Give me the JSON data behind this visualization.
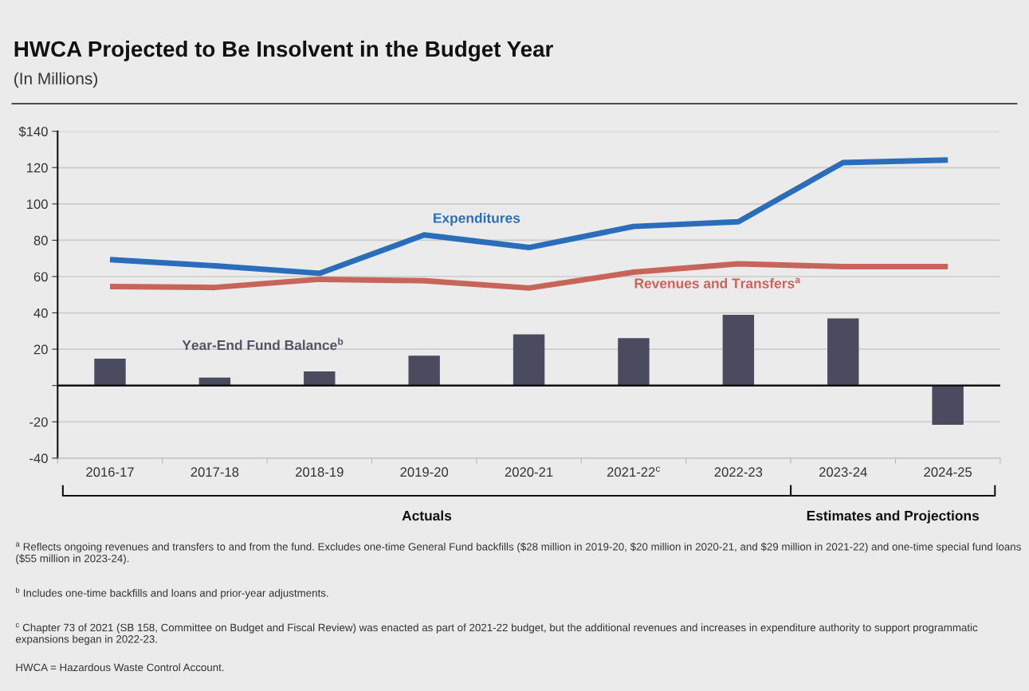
{
  "chart_data": {
    "type": "line",
    "title": "HWCA Projected to Be Insolvent in the Budget Year",
    "subtitle": "(In Millions)",
    "categories": [
      "2016-17",
      "2017-18",
      "2018-19",
      "2019-20",
      "2020-21",
      "2021-22$^{c}$",
      "2022-23",
      "2023-24",
      "2024-25"
    ],
    "series": [
      {
        "name": "Year-End Fund Balance$^{b}$",
        "type": "bar",
        "color": "#4b4b60",
        "values": [
          14.8,
          4.4,
          7.8,
          16.4,
          28.2,
          26.1,
          38.9,
          36.9,
          -21.6
        ]
      },
      {
        "name": "Expenditures",
        "color": "#2a6ebb",
        "values": [
          69.3,
          65.9,
          61.8,
          82.9,
          76.0,
          87.6,
          90.2,
          122.8,
          124.2
        ]
      },
      {
        "name": "Revenues and Transfers$^{a}$",
        "color": "#c8655a",
        "values": [
          54.5,
          54.0,
          58.5,
          57.7,
          53.7,
          62.4,
          67.0,
          65.5,
          65.5
        ]
      }
    ],
    "ylim": [
      -40,
      140
    ],
    "yticks": [
      {
        "value": 140,
        "label": "$140"
      },
      120,
      100,
      80,
      60,
      40,
      20,
      {
        "value": 0,
        "label": null
      },
      -20,
      -40
    ],
    "ref_lines": [
      {
        "axis": "y",
        "value": 0,
        "color": "#111111"
      }
    ],
    "grid": "y",
    "legend": false,
    "marker": "none",
    "line_style": "solid",
    "annotations": [
      "Actuals",
      "Estimates and Projections",
      "$^{a}$ Reflects ongoing revenues and transfers to and from the fund. Excludes one-time General Fund backfills ($28 million in 2019-20, $20 million in 2020-21, and $29 million in 2021-22) and one-time special fund loans ($55 million in 2023-24).",
      "$^{b}$ Includes one-time backfills and loans and prior-year adjustments.",
      "$^{c}$ Chapter 73 of 2021 (SB 158, Committee on Budget and Fiscal Review) was enacted as part of 2021-22 budget, but the additional revenues and increases in expenditure authority to support programmatic expansions began in 2022-23.",
      "HWCA = Hazardous Waste Control Account."
    ]
  }
}
